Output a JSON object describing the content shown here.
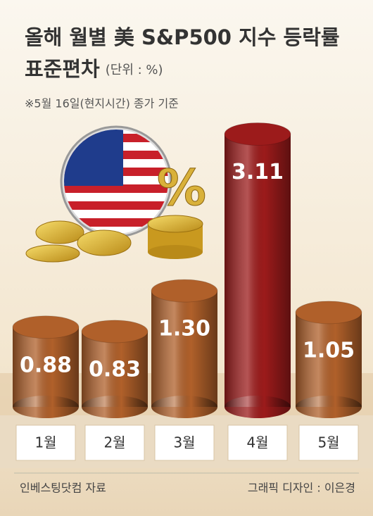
{
  "chart_data": {
    "type": "bar",
    "title": [
      "올해 월별 美 S&P500 지수 등락률",
      "표준편차"
    ],
    "unit": "(단위 : %)",
    "note": "※5월 16일(현지시간) 종가 기준",
    "categories": [
      "1월",
      "2월",
      "3월",
      "4월",
      "5월"
    ],
    "values": [
      0.88,
      0.83,
      1.3,
      3.11,
      1.05
    ],
    "value_labels": [
      "0.88",
      "0.83",
      "1.30",
      "3.11",
      "1.05"
    ],
    "colors": [
      "#b0602a",
      "#b0602a",
      "#b0602a",
      "#9c1b1b",
      "#b0602a"
    ],
    "source": "인베스팅닷컴 자료",
    "credit": "그래픽 디자인 : 이은경"
  }
}
